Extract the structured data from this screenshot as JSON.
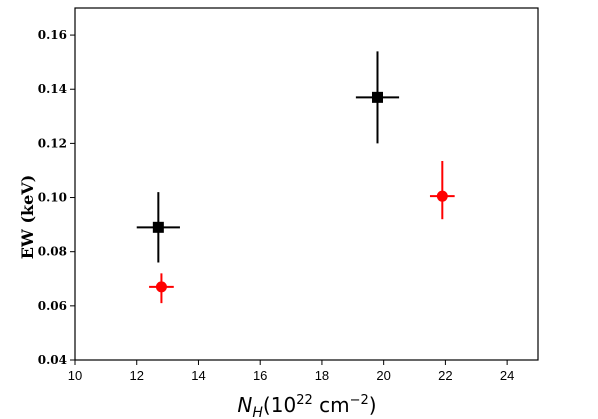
{
  "chart_data": {
    "type": "scatter",
    "title": "",
    "xlabel": {
      "base": "N",
      "sub": "H",
      "paren_open": "(10",
      "sup1": "22",
      "unit": " cm",
      "sup2": "−2",
      "paren_close": ")"
    },
    "ylabel": "EW (keV)",
    "xlim": [
      10,
      25
    ],
    "ylim": [
      0.04,
      0.17
    ],
    "xticks": [
      10,
      12,
      14,
      16,
      18,
      20,
      22,
      24
    ],
    "yticks": [
      0.04,
      0.06,
      0.08,
      0.1,
      0.12,
      0.14,
      0.16
    ],
    "xtick_labels": [
      "10",
      "12",
      "14",
      "16",
      "18",
      "20",
      "22",
      "24"
    ],
    "ytick_labels": [
      "0.04",
      "0.06",
      "0.08",
      "0.10",
      "0.12",
      "0.14",
      "0.16"
    ],
    "grid": false,
    "series": [
      {
        "marker": "square",
        "color": "#000000",
        "points": [
          {
            "x": 12.7,
            "y": 0.089,
            "xerr": 0.7,
            "yerr_low": 0.013,
            "yerr_high": 0.013
          },
          {
            "x": 19.8,
            "y": 0.137,
            "xerr": 0.7,
            "yerr_low": 0.017,
            "yerr_high": 0.017
          }
        ]
      },
      {
        "marker": "circle",
        "color": "#ff0000",
        "points": [
          {
            "x": 12.8,
            "y": 0.067,
            "xerr": 0.4,
            "yerr_low": 0.006,
            "yerr_high": 0.005
          },
          {
            "x": 21.9,
            "y": 0.1005,
            "xerr": 0.4,
            "yerr_low": 0.0085,
            "yerr_high": 0.013
          }
        ]
      }
    ]
  }
}
